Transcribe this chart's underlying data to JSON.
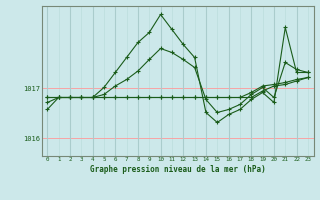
{
  "title": "Graphe pression niveau de la mer (hPa)",
  "background_color": "#cce8ea",
  "plot_background": "#cce8ea",
  "grid_color_v_major": "#aacccc",
  "grid_color_v_minor": "#bbdddd",
  "grid_color_h": "#ff9999",
  "line_color": "#1a5c1a",
  "ylim": [
    1015.65,
    1018.65
  ],
  "yticks": [
    1016,
    1017
  ],
  "xlim": [
    -0.5,
    23.5
  ],
  "xticks": [
    0,
    1,
    2,
    3,
    4,
    5,
    6,
    7,
    8,
    9,
    10,
    11,
    12,
    13,
    14,
    15,
    16,
    17,
    18,
    19,
    20,
    21,
    22,
    23
  ],
  "series": [
    [
      1016.72,
      1016.82,
      1016.82,
      1016.82,
      1016.82,
      1016.88,
      1017.05,
      1017.18,
      1017.35,
      1017.58,
      1017.8,
      1017.72,
      1017.58,
      1017.42,
      1016.78,
      1016.52,
      1016.58,
      1016.68,
      1016.88,
      1017.02,
      1016.82,
      1017.52,
      1017.38,
      1017.32
    ],
    [
      1016.58,
      1016.82,
      1016.82,
      1016.82,
      1016.82,
      1017.02,
      1017.32,
      1017.62,
      1017.92,
      1018.12,
      1018.48,
      1018.18,
      1017.88,
      1017.62,
      1016.52,
      1016.32,
      1016.48,
      1016.58,
      1016.78,
      1016.92,
      1016.72,
      1018.22,
      1017.32,
      1017.32
    ],
    [
      1016.82,
      1016.82,
      1016.82,
      1016.82,
      1016.82,
      1016.82,
      1016.82,
      1016.82,
      1016.82,
      1016.82,
      1016.82,
      1016.82,
      1016.82,
      1016.82,
      1016.82,
      1016.82,
      1016.82,
      1016.82,
      1016.92,
      1017.05,
      1017.08,
      1017.12,
      1017.18,
      1017.22
    ],
    [
      1016.82,
      1016.82,
      1016.82,
      1016.82,
      1016.82,
      1016.82,
      1016.82,
      1016.82,
      1016.82,
      1016.82,
      1016.82,
      1016.82,
      1016.82,
      1016.82,
      1016.82,
      1016.82,
      1016.82,
      1016.82,
      1016.82,
      1016.95,
      1017.05,
      1017.08,
      1017.15,
      1017.22
    ]
  ]
}
